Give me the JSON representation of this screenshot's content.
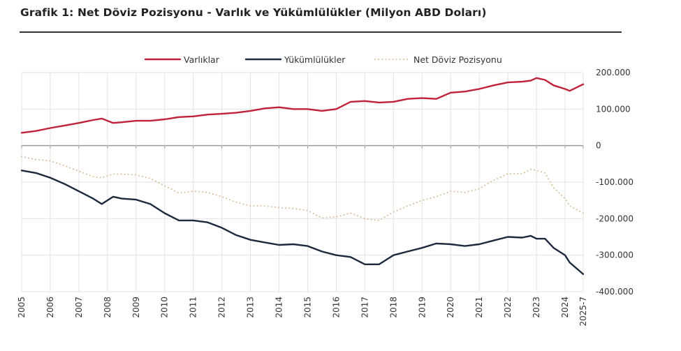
{
  "title": "Grafik 1: Net Döviz Pozisyonu - Varlık ve Yükümlülükler (Milyon ABD Doları)",
  "chart_data": {
    "type": "line",
    "title": "Grafik 1: Net Döviz Pozisyonu - Varlık ve Yükümlülükler (Milyon ABD Doları)",
    "xlabel": "",
    "ylabel": "",
    "ylim": [
      -400000,
      200000
    ],
    "xlim": [
      2005,
      2025.58
    ],
    "grid": true,
    "legend_position": "top",
    "x_ticks": [
      {
        "v": 2005,
        "label": "2005"
      },
      {
        "v": 2006,
        "label": "2006"
      },
      {
        "v": 2007,
        "label": "2007"
      },
      {
        "v": 2008,
        "label": "2008"
      },
      {
        "v": 2009,
        "label": "2009"
      },
      {
        "v": 2010,
        "label": "2010"
      },
      {
        "v": 2011,
        "label": "2011"
      },
      {
        "v": 2012,
        "label": "2012"
      },
      {
        "v": 2013,
        "label": "2013"
      },
      {
        "v": 2014,
        "label": "2014"
      },
      {
        "v": 2015,
        "label": "2015"
      },
      {
        "v": 2016,
        "label": "2016"
      },
      {
        "v": 2017,
        "label": "2017"
      },
      {
        "v": 2018,
        "label": "2018"
      },
      {
        "v": 2019,
        "label": "2019"
      },
      {
        "v": 2020,
        "label": "2020"
      },
      {
        "v": 2021,
        "label": "2021"
      },
      {
        "v": 2022,
        "label": "2022"
      },
      {
        "v": 2023,
        "label": "2023"
      },
      {
        "v": 2024,
        "label": "2024"
      },
      {
        "v": 2025.58,
        "label": "2025-7"
      }
    ],
    "y_ticks": [
      {
        "v": 200000,
        "label": "200.000"
      },
      {
        "v": 100000,
        "label": "100.000"
      },
      {
        "v": 0,
        "label": "0"
      },
      {
        "v": -100000,
        "label": "-100.000"
      },
      {
        "v": -200000,
        "label": "-200.000"
      },
      {
        "v": -300000,
        "label": "-300.000"
      },
      {
        "v": -400000,
        "label": "-400.000"
      }
    ],
    "x": [
      2005,
      2005.5,
      2006,
      2006.5,
      2007,
      2007.5,
      2007.8,
      2008.2,
      2008.5,
      2009,
      2009.5,
      2010,
      2010.5,
      2011,
      2011.5,
      2012,
      2012.5,
      2013,
      2013.5,
      2014,
      2014.5,
      2015,
      2015.5,
      2016,
      2016.5,
      2017,
      2017.5,
      2018,
      2018.5,
      2019,
      2019.5,
      2020,
      2020.5,
      2021,
      2021.5,
      2022,
      2022.5,
      2022.8,
      2023,
      2023.3,
      2023.6,
      2024,
      2024.4,
      2025.58
    ],
    "series": [
      {
        "name": "Varlıklar",
        "color": "#c0223a",
        "style": "solid",
        "values": [
          35000,
          40000,
          48000,
          55000,
          62000,
          70000,
          74000,
          62000,
          64000,
          68000,
          68000,
          72000,
          78000,
          80000,
          85000,
          87000,
          90000,
          95000,
          102000,
          105000,
          100000,
          100000,
          95000,
          100000,
          120000,
          122000,
          118000,
          120000,
          128000,
          130000,
          128000,
          145000,
          148000,
          155000,
          165000,
          173000,
          175000,
          178000,
          185000,
          180000,
          165000,
          155000,
          150000,
          168000
        ]
      },
      {
        "name": "Yükümlülükler",
        "color": "#1b2a3d",
        "style": "solid",
        "values": [
          -68000,
          -75000,
          -88000,
          -105000,
          -125000,
          -145000,
          -160000,
          -140000,
          -145000,
          -148000,
          -160000,
          -185000,
          -205000,
          -205000,
          -210000,
          -225000,
          -245000,
          -258000,
          -265000,
          -272000,
          -270000,
          -275000,
          -290000,
          -300000,
          -305000,
          -325000,
          -325000,
          -300000,
          -290000,
          -280000,
          -268000,
          -270000,
          -275000,
          -270000,
          -260000,
          -250000,
          -252000,
          -247000,
          -255000,
          -255000,
          -280000,
          -300000,
          -320000,
          -352000
        ]
      },
      {
        "name": "Net Döviz Pozisyonu",
        "color": "#d9bf9a",
        "style": "dotted",
        "values": [
          -30000,
          -38000,
          -42000,
          -55000,
          -70000,
          -85000,
          -88000,
          -78000,
          -78000,
          -80000,
          -90000,
          -110000,
          -130000,
          -125000,
          -128000,
          -140000,
          -155000,
          -165000,
          -165000,
          -170000,
          -172000,
          -178000,
          -198000,
          -195000,
          -185000,
          -200000,
          -205000,
          -182000,
          -165000,
          -150000,
          -140000,
          -125000,
          -128000,
          -118000,
          -95000,
          -77000,
          -77000,
          -65000,
          -68000,
          -75000,
          -115000,
          -145000,
          -165000,
          -185000
        ]
      }
    ]
  }
}
